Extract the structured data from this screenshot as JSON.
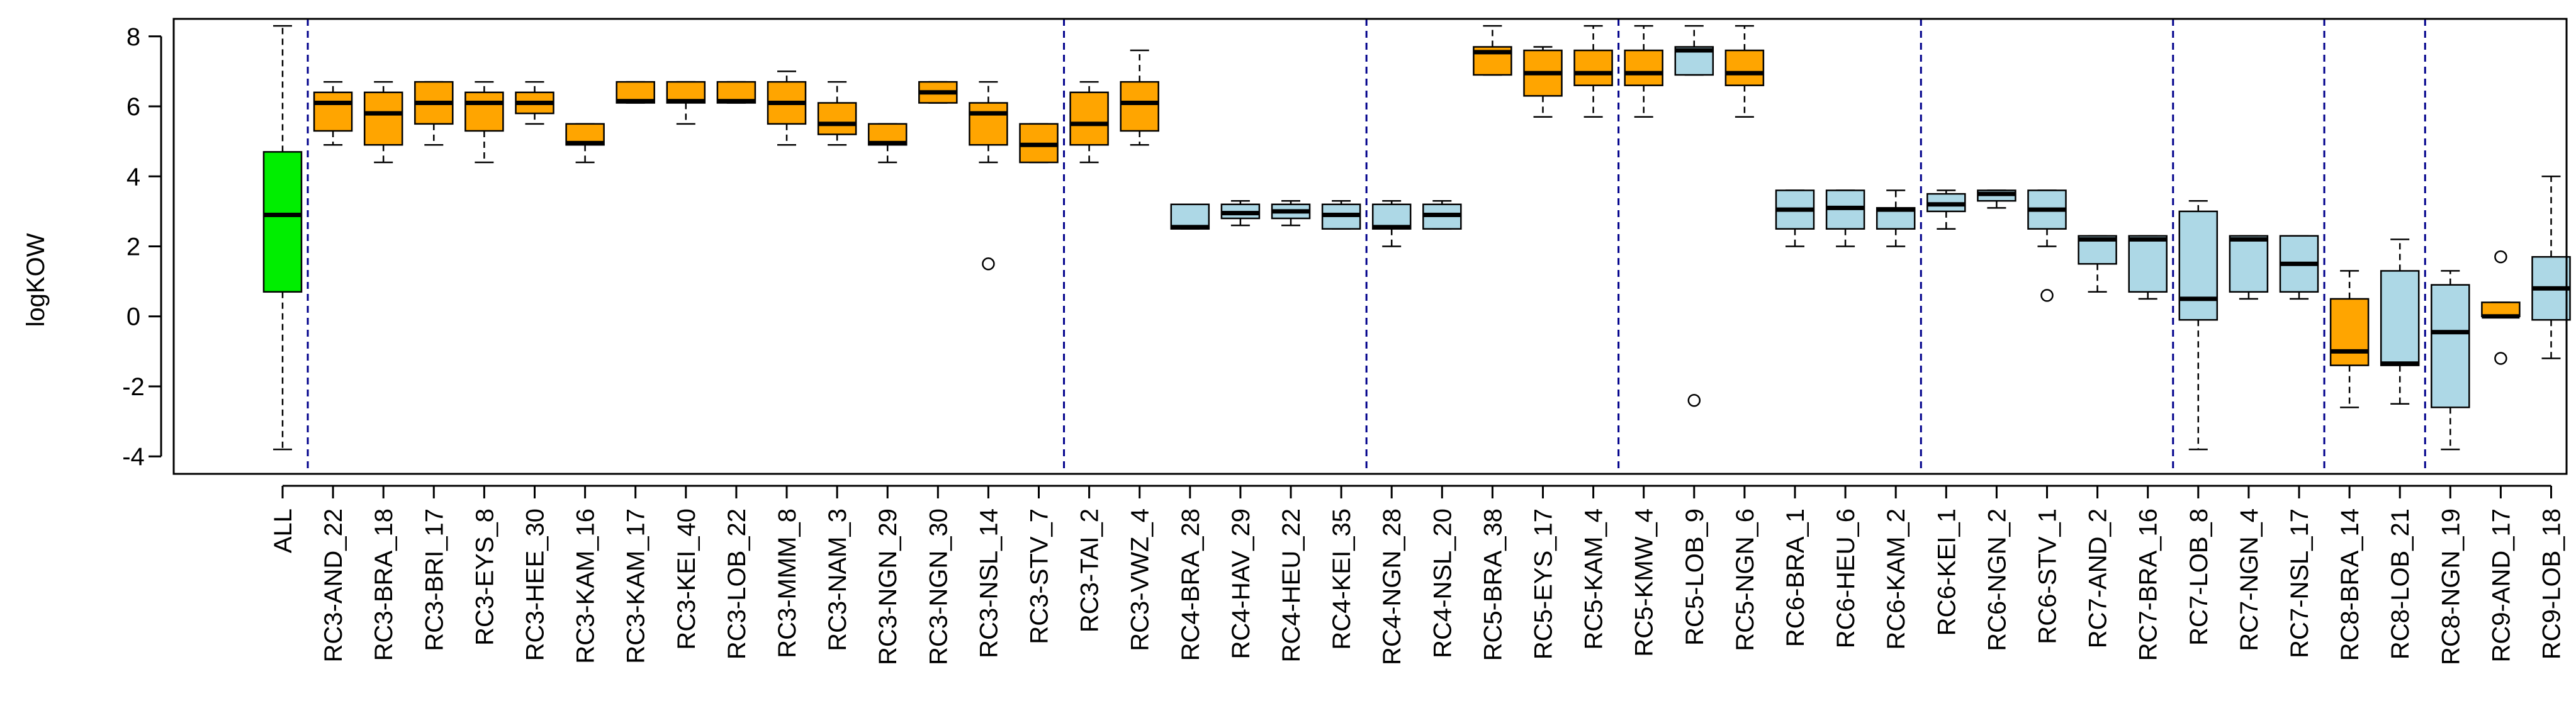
{
  "chart_data": {
    "type": "box",
    "title": "",
    "xlabel": "",
    "ylabel": "logKOW",
    "ylim": [
      -4.5,
      8.5
    ],
    "yticks": [
      -4,
      -2,
      0,
      2,
      4,
      6,
      8
    ],
    "grid": false,
    "group_separators_after": [
      0,
      15,
      21,
      26,
      32,
      37,
      40,
      42
    ],
    "colors": {
      "all": "#00ee00",
      "orange": "#ffa500",
      "blue": "#add8e6",
      "separator": "#00008b",
      "stroke": "#000000"
    },
    "boxes": [
      {
        "label": "ALL",
        "color": "all",
        "min": -3.8,
        "q1": 0.7,
        "median": 2.9,
        "q3": 4.7,
        "max": 8.3,
        "outliers": []
      },
      {
        "label": "RC3-AND_22",
        "color": "orange",
        "min": 4.9,
        "q1": 5.3,
        "median": 6.1,
        "q3": 6.4,
        "max": 6.7,
        "outliers": []
      },
      {
        "label": "RC3-BRA_18",
        "color": "orange",
        "min": 4.4,
        "q1": 4.9,
        "median": 5.8,
        "q3": 6.4,
        "max": 6.7,
        "outliers": []
      },
      {
        "label": "RC3-BRI_17",
        "color": "orange",
        "min": 4.9,
        "q1": 5.5,
        "median": 6.1,
        "q3": 6.7,
        "max": 6.7,
        "outliers": []
      },
      {
        "label": "RC3-EYS_8",
        "color": "orange",
        "min": 4.4,
        "q1": 5.3,
        "median": 6.1,
        "q3": 6.4,
        "max": 6.7,
        "outliers": []
      },
      {
        "label": "RC3-HEE_30",
        "color": "orange",
        "min": 5.5,
        "q1": 5.8,
        "median": 6.1,
        "q3": 6.4,
        "max": 6.7,
        "outliers": []
      },
      {
        "label": "RC3-KAM_16",
        "color": "orange",
        "min": 4.4,
        "q1": 4.9,
        "median": 4.95,
        "q3": 5.5,
        "max": 5.5,
        "outliers": []
      },
      {
        "label": "RC3-KAM_17",
        "color": "orange",
        "min": 6.1,
        "q1": 6.1,
        "median": 6.15,
        "q3": 6.7,
        "max": 6.7,
        "outliers": []
      },
      {
        "label": "RC3-KEI_40",
        "color": "orange",
        "min": 5.5,
        "q1": 6.1,
        "median": 6.15,
        "q3": 6.7,
        "max": 6.7,
        "outliers": []
      },
      {
        "label": "RC3-LOB_22",
        "color": "orange",
        "min": 6.1,
        "q1": 6.1,
        "median": 6.15,
        "q3": 6.7,
        "max": 6.7,
        "outliers": []
      },
      {
        "label": "RC3-MMM_8",
        "color": "orange",
        "min": 4.9,
        "q1": 5.5,
        "median": 6.1,
        "q3": 6.7,
        "max": 7.0,
        "outliers": []
      },
      {
        "label": "RC3-NAM_3",
        "color": "orange",
        "min": 4.9,
        "q1": 5.2,
        "median": 5.5,
        "q3": 6.1,
        "max": 6.7,
        "outliers": []
      },
      {
        "label": "RC3-NGN_29",
        "color": "orange",
        "min": 4.4,
        "q1": 4.9,
        "median": 4.95,
        "q3": 5.5,
        "max": 5.5,
        "outliers": []
      },
      {
        "label": "RC3-NGN_30",
        "color": "orange",
        "min": 6.1,
        "q1": 6.1,
        "median": 6.4,
        "q3": 6.7,
        "max": 6.7,
        "outliers": []
      },
      {
        "label": "RC3-NSL_14",
        "color": "orange",
        "min": 4.4,
        "q1": 4.9,
        "median": 5.8,
        "q3": 6.1,
        "max": 6.7,
        "outliers": [
          1.5
        ]
      },
      {
        "label": "RC3-STV_7",
        "color": "orange",
        "min": 4.4,
        "q1": 4.4,
        "median": 4.9,
        "q3": 5.5,
        "max": 5.5,
        "outliers": []
      },
      {
        "label": "RC3-TAI_2",
        "color": "orange",
        "min": 4.4,
        "q1": 4.9,
        "median": 5.5,
        "q3": 6.4,
        "max": 6.7,
        "outliers": []
      },
      {
        "label": "RC3-VWZ_4",
        "color": "orange",
        "min": 4.9,
        "q1": 5.3,
        "median": 6.1,
        "q3": 6.7,
        "max": 7.6,
        "outliers": []
      },
      {
        "label": "RC4-BRA_28",
        "color": "blue",
        "min": 2.5,
        "q1": 2.5,
        "median": 2.55,
        "q3": 3.2,
        "max": 3.2,
        "outliers": []
      },
      {
        "label": "RC4-HAV_29",
        "color": "blue",
        "min": 2.6,
        "q1": 2.8,
        "median": 2.95,
        "q3": 3.2,
        "max": 3.3,
        "outliers": []
      },
      {
        "label": "RC4-HEU_22",
        "color": "blue",
        "min": 2.6,
        "q1": 2.8,
        "median": 3.0,
        "q3": 3.2,
        "max": 3.3,
        "outliers": []
      },
      {
        "label": "RC4-KEI_35",
        "color": "blue",
        "min": 2.5,
        "q1": 2.5,
        "median": 2.9,
        "q3": 3.2,
        "max": 3.3,
        "outliers": []
      },
      {
        "label": "RC4-NGN_28",
        "color": "blue",
        "min": 2.0,
        "q1": 2.5,
        "median": 2.55,
        "q3": 3.2,
        "max": 3.3,
        "outliers": []
      },
      {
        "label": "RC4-NSL_20",
        "color": "blue",
        "min": 2.5,
        "q1": 2.5,
        "median": 2.9,
        "q3": 3.2,
        "max": 3.3,
        "outliers": []
      },
      {
        "label": "RC5-BRA_38",
        "color": "orange",
        "min": 6.9,
        "q1": 6.9,
        "median": 7.55,
        "q3": 7.7,
        "max": 8.3,
        "outliers": []
      },
      {
        "label": "RC5-EYS_17",
        "color": "orange",
        "min": 5.7,
        "q1": 6.3,
        "median": 6.95,
        "q3": 7.6,
        "max": 7.7,
        "outliers": []
      },
      {
        "label": "RC5-KAM_4",
        "color": "orange",
        "min": 5.7,
        "q1": 6.6,
        "median": 6.95,
        "q3": 7.6,
        "max": 8.3,
        "outliers": []
      },
      {
        "label": "RC5-KMW_4",
        "color": "orange",
        "min": 5.7,
        "q1": 6.6,
        "median": 6.95,
        "q3": 7.6,
        "max": 8.3,
        "outliers": []
      },
      {
        "label": "RC5-LOB_9",
        "color": "blue",
        "min": 6.9,
        "q1": 6.9,
        "median": 7.6,
        "q3": 7.7,
        "max": 8.3,
        "outliers": [
          -2.4
        ]
      },
      {
        "label": "RC5-NGN_6",
        "color": "orange",
        "min": 5.7,
        "q1": 6.6,
        "median": 6.95,
        "q3": 7.6,
        "max": 8.3,
        "outliers": []
      },
      {
        "label": "RC6-BRA_1",
        "color": "blue",
        "min": 2.0,
        "q1": 2.5,
        "median": 3.05,
        "q3": 3.6,
        "max": 3.6,
        "outliers": []
      },
      {
        "label": "RC6-HEU_6",
        "color": "blue",
        "min": 2.0,
        "q1": 2.5,
        "median": 3.1,
        "q3": 3.6,
        "max": 3.6,
        "outliers": []
      },
      {
        "label": "RC6-KAM_2",
        "color": "blue",
        "min": 2.0,
        "q1": 2.5,
        "median": 3.05,
        "q3": 3.1,
        "max": 3.6,
        "outliers": []
      },
      {
        "label": "RC6-KEI_1",
        "color": "blue",
        "min": 2.5,
        "q1": 3.0,
        "median": 3.2,
        "q3": 3.5,
        "max": 3.6,
        "outliers": []
      },
      {
        "label": "RC6-NGN_2",
        "color": "blue",
        "min": 3.1,
        "q1": 3.3,
        "median": 3.5,
        "q3": 3.6,
        "max": 3.6,
        "outliers": []
      },
      {
        "label": "RC6-STV_1",
        "color": "blue",
        "min": 2.0,
        "q1": 2.5,
        "median": 3.05,
        "q3": 3.6,
        "max": 3.6,
        "outliers": [
          0.6
        ]
      },
      {
        "label": "RC7-AND_2",
        "color": "blue",
        "min": 0.7,
        "q1": 1.5,
        "median": 2.2,
        "q3": 2.3,
        "max": 2.3,
        "outliers": []
      },
      {
        "label": "RC7-BRA_16",
        "color": "blue",
        "min": 0.5,
        "q1": 0.7,
        "median": 2.2,
        "q3": 2.3,
        "max": 2.3,
        "outliers": []
      },
      {
        "label": "RC7-LOB_8",
        "color": "blue",
        "min": -3.8,
        "q1": -0.1,
        "median": 0.5,
        "q3": 3.0,
        "max": 3.3,
        "outliers": []
      },
      {
        "label": "RC7-NGN_4",
        "color": "blue",
        "min": 0.5,
        "q1": 0.7,
        "median": 2.2,
        "q3": 2.3,
        "max": 2.3,
        "outliers": []
      },
      {
        "label": "RC7-NSL_17",
        "color": "blue",
        "min": 0.5,
        "q1": 0.7,
        "median": 1.5,
        "q3": 2.3,
        "max": 2.3,
        "outliers": []
      },
      {
        "label": "RC8-BRA_14",
        "color": "orange",
        "min": -2.6,
        "q1": -1.4,
        "median": -1.0,
        "q3": 0.5,
        "max": 1.3,
        "outliers": []
      },
      {
        "label": "RC8-LOB_21",
        "color": "blue",
        "min": -2.5,
        "q1": -1.4,
        "median": -1.35,
        "q3": 1.3,
        "max": 2.2,
        "outliers": []
      },
      {
        "label": "RC8-NGN_19",
        "color": "blue",
        "min": -3.8,
        "q1": -2.6,
        "median": -0.45,
        "q3": 0.9,
        "max": 1.3,
        "outliers": []
      },
      {
        "label": "RC9-AND_17",
        "color": "orange",
        "min": 0.0,
        "q1": 0.0,
        "median": 0.0,
        "q3": 0.4,
        "max": 0.4,
        "outliers": [
          1.7,
          -1.2
        ]
      },
      {
        "label": "RC9-LOB_18",
        "color": "blue",
        "min": -1.2,
        "q1": -0.1,
        "median": 0.8,
        "q3": 1.7,
        "max": 4.0,
        "outliers": []
      }
    ]
  }
}
